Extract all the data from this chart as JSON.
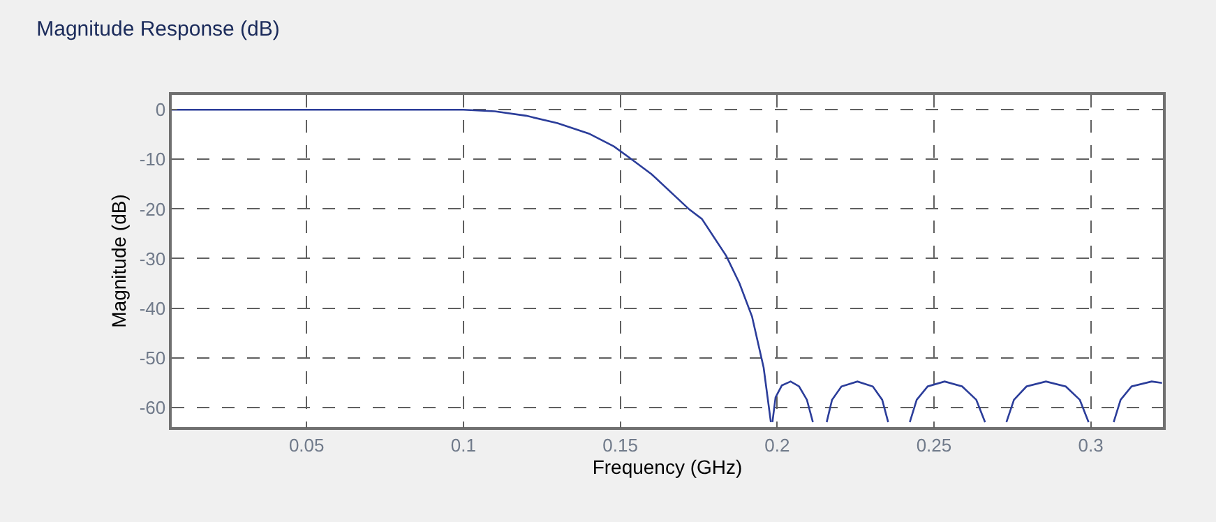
{
  "chart_data": {
    "type": "line",
    "title": "Magnitude Response (dB)",
    "xlabel": "Frequency (GHz)",
    "ylabel": "Magnitude (dB)",
    "x": [
      0.007,
      0.1,
      0.11,
      0.12,
      0.13,
      0.14,
      0.148,
      0.153,
      0.16,
      0.172,
      0.176,
      0.1838,
      0.188,
      0.192,
      0.1957,
      0.198,
      0.1982,
      0.1985,
      0.1995,
      0.2015,
      0.2043,
      0.207,
      0.2095,
      0.2114,
      0.213,
      0.2158,
      0.2175,
      0.2205,
      0.2256,
      0.2305,
      0.2335,
      0.2354,
      0.239,
      0.2423,
      0.2445,
      0.248,
      0.2534,
      0.259,
      0.2635,
      0.2663,
      0.27,
      0.2731,
      0.2755,
      0.2795,
      0.2857,
      0.292,
      0.2965,
      0.2993,
      0.303,
      0.3073,
      0.3095,
      0.313,
      0.3194,
      0.3227
    ],
    "series": [
      {
        "color": "#2b3d9a",
        "values": [
          0,
          0,
          -0.3,
          -1.2,
          -2.7,
          -4.8,
          -7.4,
          -9.7,
          -13,
          -20.1,
          -22,
          -29.5,
          -35,
          -41.7,
          -52,
          -63,
          null,
          -63,
          -58,
          -55.6,
          -54.8,
          -55.8,
          -58.5,
          -63,
          null,
          -63,
          -58.5,
          -55.8,
          -54.8,
          -55.8,
          -58.5,
          -63,
          null,
          -63,
          -58.5,
          -55.8,
          -54.8,
          -55.8,
          -58.5,
          -63,
          null,
          -63,
          -58.5,
          -55.8,
          -54.8,
          -55.8,
          -58.5,
          -63,
          null,
          -63,
          -58.5,
          -55.8,
          -54.8,
          -55.1
        ]
      }
    ],
    "xlim": [
      0.007,
      0.323
    ],
    "xticks": [
      0.05,
      0.1,
      0.15,
      0.2,
      0.25,
      0.3
    ],
    "ylim": [
      -64,
      3
    ],
    "yticks": [
      0,
      -10,
      -20,
      -30,
      -40,
      -50,
      -60
    ],
    "grid": true,
    "line_style": "solid",
    "marker": "none"
  }
}
